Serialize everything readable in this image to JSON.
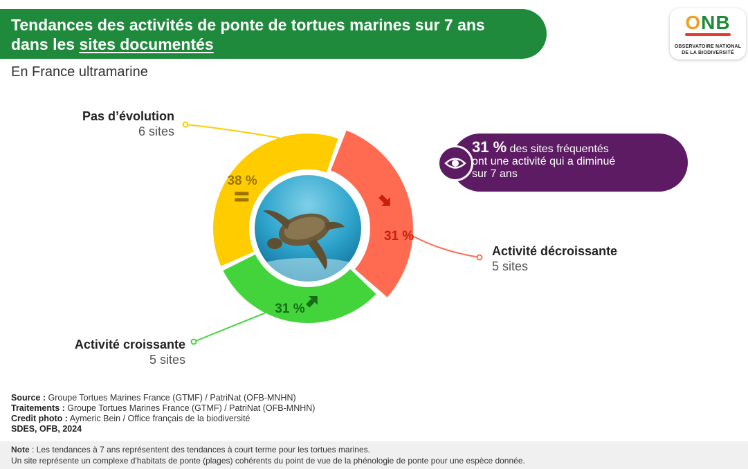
{
  "header": {
    "title_line1": "Tendances des activités de ponte de tortues marines sur 7 ans",
    "title_line2_prefix": "dans les ",
    "title_line2_link": "sites documentés",
    "subtitle": "En France ultramarine"
  },
  "logo": {
    "mark_o": "O",
    "mark_nb": "NB",
    "line1": "OBSERVATOIRE NATIONAL",
    "line2": "DE LA BIODIVERSITÉ"
  },
  "chart_data": {
    "type": "pie",
    "categories": [
      "Activité décroissante",
      "Activité croissante",
      "Pas d’évolution"
    ],
    "values": [
      5,
      5,
      6
    ],
    "counts_text": [
      "5 sites",
      "5 sites",
      "6 sites"
    ],
    "percent_labels": [
      "31 %",
      "31 %",
      "38 %"
    ],
    "trend_symbols": [
      "arrow-down-right-icon",
      "arrow-up-right-icon",
      "equals-icon"
    ],
    "colors": [
      "#ff6b50",
      "#43d43c",
      "#ffcc00"
    ],
    "label_colors": [
      "#c8200a",
      "#166d16",
      "#9a7400"
    ]
  },
  "callout": {
    "value": "31 %",
    "line1_rest": " des sites fréquentés",
    "line2": "ont une activité qui a diminué",
    "line3": "sur 7 ans",
    "icon": "eye-icon",
    "color": "#5c1b62"
  },
  "footer": {
    "source_label": "Source :",
    "source_text": " Groupe Tortues Marines France (GTMF) / PatriNat (OFB-MNHN)",
    "treatments_label": "Traitements :",
    "treatments_text": " Groupe Tortues Marines France (GTMF) / PatriNat (OFB-MNHN)",
    "credit_label": "Credit photo :",
    "credit_text": " Aymeric Bein / Office français de la biodiversité",
    "org": "SDES, OFB, 2024",
    "note_label": "Note",
    "note_line1": " : Les tendances à 7 ans représentent des tendances à court terme pour les tortues marines.",
    "note_line2": "Un site représente un complexe d'habitats de ponte (plages) cohérents du point de vue de la phénologie de ponte pour une espèce donnée."
  }
}
